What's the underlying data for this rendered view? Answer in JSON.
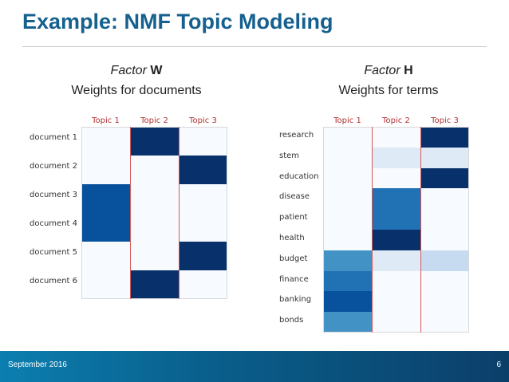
{
  "title": "Example: NMF Topic Modeling",
  "left": {
    "factor_word": "Factor",
    "factor_letter": "W",
    "subtitle": "Weights for documents",
    "columns": [
      "Topic 1",
      "Topic 2",
      "Topic 3"
    ],
    "rows": [
      "document 1",
      "document 2",
      "document 3",
      "document 4",
      "document 5",
      "document 6"
    ],
    "weights": [
      [
        0.0,
        1.0,
        0.0
      ],
      [
        0.0,
        0.0,
        1.0
      ],
      [
        0.85,
        0.0,
        0.0
      ],
      [
        0.85,
        0.0,
        0.0
      ],
      [
        0.0,
        0.0,
        1.0
      ],
      [
        0.0,
        1.0,
        0.0
      ]
    ]
  },
  "right": {
    "factor_word": "Factor",
    "factor_letter": "H",
    "subtitle": "Weights for terms",
    "columns": [
      "Topic 1",
      "Topic 2",
      "Topic 3"
    ],
    "rows": [
      "research",
      "stem",
      "education",
      "disease",
      "patient",
      "health",
      "budget",
      "finance",
      "banking",
      "bonds"
    ],
    "weights": [
      [
        0.0,
        0.0,
        1.0
      ],
      [
        0.0,
        0.1,
        0.1
      ],
      [
        0.0,
        0.0,
        1.0
      ],
      [
        0.0,
        0.7,
        0.0
      ],
      [
        0.0,
        0.7,
        0.0
      ],
      [
        0.0,
        1.0,
        0.0
      ],
      [
        0.55,
        0.1,
        0.2
      ],
      [
        0.7,
        0.0,
        0.0
      ],
      [
        0.85,
        0.0,
        0.0
      ],
      [
        0.55,
        0.0,
        0.0
      ]
    ]
  },
  "footer": {
    "date": "September 2016",
    "page": "6"
  },
  "colors": {
    "title": "#15608f",
    "divider": "#d45a5a"
  }
}
